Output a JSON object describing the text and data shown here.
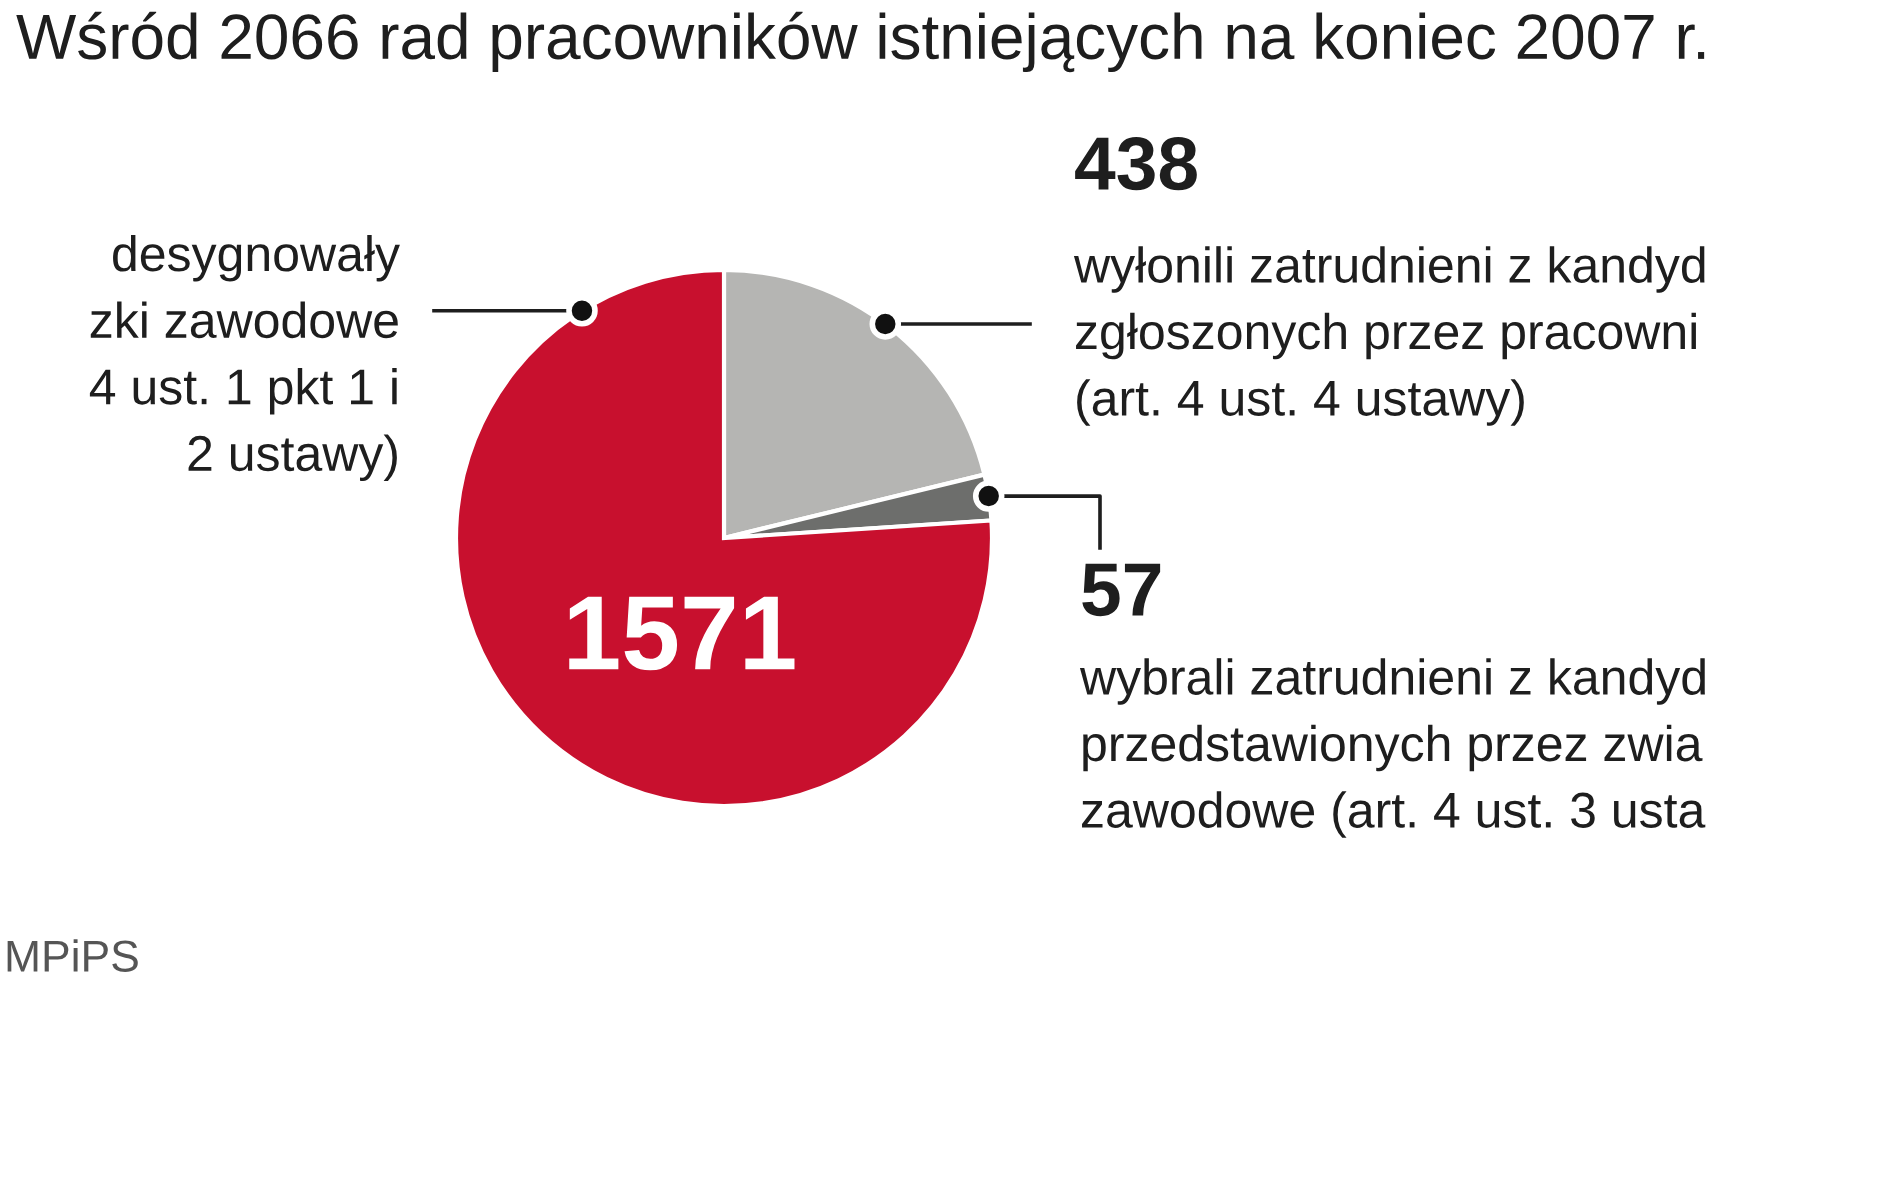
{
  "chart_data": {
    "type": "pie",
    "title": "Wśród 2066 rad pracowników istniejących na koniec 2007 r.",
    "categories": [
      "wyłonili zatrudnieni z kandyd\nzgłoszonych przez pracowni\n(art. 4 ust. 4 ustawy)",
      "wybrali zatrudnieni z kandyd\nprzedstawionych przez zwia\nzawodowe (art. 4 ust. 3 usta",
      "desygnowały\nzki zawodowe\n4 ust. 1 pkt 1 i\n2 ustawy)"
    ],
    "values": [
      438,
      57,
      1571
    ],
    "colors": [
      "#b5b5b3",
      "#6d6e6c",
      "#c8102e"
    ],
    "data_labels": true,
    "annotations": [
      "MPiPS"
    ]
  }
}
